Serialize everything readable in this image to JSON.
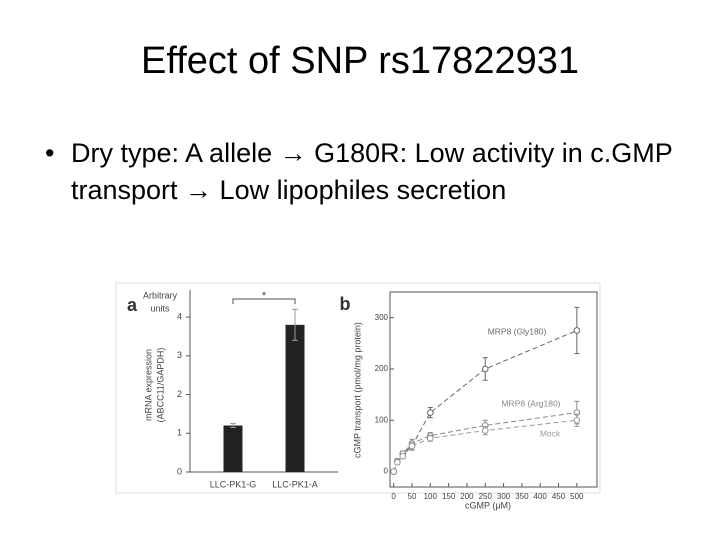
{
  "slide": {
    "title": "Effect of SNP rs17822931",
    "bullets": [
      "Dry type: A allele → G180R: Low activity in c.GMP transport → Low lipophiles secretion"
    ]
  },
  "chart_data": [
    {
      "type": "bar",
      "panel": "a",
      "unit_label": [
        "Arbitrary",
        "units"
      ],
      "y_label": [
        "mRNA expression",
        "(ABCC11/GAPDH)"
      ],
      "categories": [
        "LLC-PK1-G",
        "LLC-PK1-A"
      ],
      "values": [
        1.2,
        3.8
      ],
      "errors": [
        0.05,
        0.4
      ],
      "color": "#222222",
      "ylim": [
        0,
        4.7
      ],
      "yticks": [
        0,
        1,
        2,
        3,
        4
      ],
      "annotation": "*"
    },
    {
      "type": "line",
      "panel": "b",
      "x_label": "cGMP (μM)",
      "y_label": "cGMP transport (pmol/mg protein)",
      "x": [
        0,
        10,
        25,
        50,
        100,
        250,
        500
      ],
      "series": [
        {
          "name": "MRP8 (Gly180)",
          "color": "#666666",
          "values": [
            0,
            20,
            35,
            50,
            115,
            200,
            275
          ],
          "errors": [
            3,
            5,
            5,
            8,
            10,
            22,
            45
          ]
        },
        {
          "name": "MRP8 (Arg180)",
          "color": "#888888",
          "values": [
            0,
            20,
            35,
            55,
            70,
            90,
            115
          ],
          "errors": [
            3,
            5,
            5,
            8,
            6,
            10,
            22
          ]
        },
        {
          "name": "Mock",
          "color": "#999999",
          "values": [
            0,
            18,
            30,
            50,
            65,
            80,
            100
          ],
          "errors": [
            3,
            4,
            5,
            7,
            6,
            8,
            12
          ]
        }
      ],
      "xlim": [
        -10,
        555
      ],
      "ylim": [
        -30,
        350
      ],
      "xticks": [
        0,
        50,
        100,
        150,
        200,
        250,
        300,
        350,
        400,
        450,
        500
      ],
      "yticks": [
        0,
        100,
        200,
        300
      ]
    }
  ]
}
